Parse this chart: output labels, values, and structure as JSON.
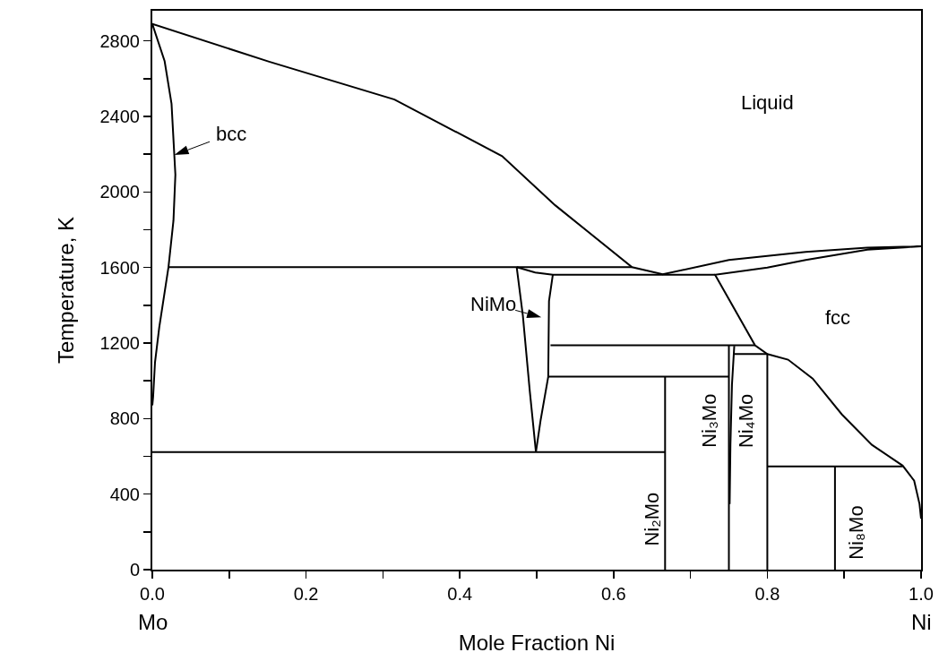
{
  "chart_data": {
    "type": "line",
    "xlabel": "Mole Fraction Ni",
    "ylabel": "Temperature, K",
    "xlim": [
      0,
      1
    ],
    "ylim": [
      0,
      2960
    ],
    "xticks": [
      {
        "value": 0,
        "label": "0.0"
      },
      {
        "value": 0.1,
        "label": null
      },
      0.2,
      {
        "value": 0.3,
        "label": null
      },
      0.4,
      {
        "value": 0.5,
        "label": null
      },
      0.6,
      {
        "value": 0.7,
        "label": null
      },
      0.8,
      {
        "value": 0.9,
        "label": null
      },
      {
        "value": 1,
        "label": "1.0"
      }
    ],
    "yticks": [
      0,
      {
        "value": 200,
        "label": null
      },
      400,
      {
        "value": 600,
        "label": null
      },
      800,
      {
        "value": 1000,
        "label": null
      },
      1200,
      {
        "value": 1400,
        "label": null
      },
      1600,
      {
        "value": 1800,
        "label": null
      },
      2000,
      {
        "value": 2200,
        "label": null
      },
      2400,
      {
        "value": 2600,
        "label": null
      },
      2800
    ],
    "grid": false,
    "marker": "none",
    "line_style": "solid",
    "series": [
      {
        "color": "#000000",
        "x": [
          0,
          0.001,
          0.0035,
          0.009,
          0.021,
          0.0275,
          0.03,
          0.025,
          0.016,
          0,
          0.152,
          0.315,
          0.455,
          0.524,
          0.624,
          0.664,
          0.75,
          0.85,
          0.93,
          1,
          0.93,
          0.85,
          0.8,
          0.732,
          0.784,
          0.8,
          0.827,
          0.859,
          0.897,
          0.936,
          0.976,
          0.991,
          0.998,
          1
        ],
        "values": [
          870,
          913,
          1098,
          1283,
          1602,
          1849,
          2092,
          2467,
          2693,
          2890,
          2690,
          2490,
          2190,
          1930,
          1602,
          1564,
          1640,
          1683,
          1705,
          1712,
          1695,
          1640,
          1600,
          1562,
          1188,
          1142,
          1112,
          1012,
          822,
          661,
          551,
          471,
          347,
          270
        ]
      },
      {
        "color": "#000000",
        "x": [
          0.021,
          0.624
        ],
        "values": [
          1602,
          1602
        ]
      },
      {
        "color": "#000000",
        "x": [
          0.474,
          0.482,
          0.491,
          0.499
        ],
        "values": [
          1602,
          1345,
          946,
          623
        ]
      },
      {
        "color": "#000000",
        "x": [
          0.474,
          0.498,
          0.521,
          0.732
        ],
        "values": [
          1602,
          1574,
          1562,
          1562
        ]
      },
      {
        "color": "#000000",
        "x": [
          0.499,
          0.505,
          0.515,
          0.516,
          0.521
        ],
        "values": [
          623,
          789,
          1022,
          1423,
          1562
        ]
      },
      {
        "color": "#000000",
        "x": [
          0.518,
          0.784
        ],
        "values": [
          1188,
          1188
        ]
      },
      {
        "color": "#000000",
        "x": [
          0.515,
          0.75
        ],
        "values": [
          1022,
          1022
        ]
      },
      {
        "color": "#000000",
        "x": [
          0,
          0.667
        ],
        "values": [
          623,
          623
        ]
      },
      {
        "color": "#000000",
        "x": [
          0.667,
          0.667
        ],
        "values": [
          0,
          1022
        ]
      },
      {
        "color": "#000000",
        "x": [
          0.75,
          0.75
        ],
        "values": [
          0,
          1188
        ]
      },
      {
        "color": "#000000",
        "x": [
          0.751,
          0.752,
          0.754,
          0.757
        ],
        "values": [
          347,
          662,
          979,
          1185
        ]
      },
      {
        "color": "#000000",
        "x": [
          0.757,
          0.8
        ],
        "values": [
          1142,
          1142
        ]
      },
      {
        "color": "#000000",
        "x": [
          0.8,
          0.8
        ],
        "values": [
          0,
          1142
        ]
      },
      {
        "color": "#000000",
        "x": [
          0.8,
          0.976
        ],
        "values": [
          547,
          547
        ]
      },
      {
        "color": "#000000",
        "x": [
          0.888,
          0.888
        ],
        "values": [
          0,
          547
        ]
      }
    ],
    "annotations": [
      "Liquid",
      {
        "text": "bcc",
        "x": 0.0286,
        "y": 2196
      },
      "NiMo",
      "fcc",
      "Ni₂Mo",
      "Ni₃Mo",
      "Ni₄Mo",
      "Ni₈Mo",
      "Mo",
      "Ni"
    ]
  }
}
